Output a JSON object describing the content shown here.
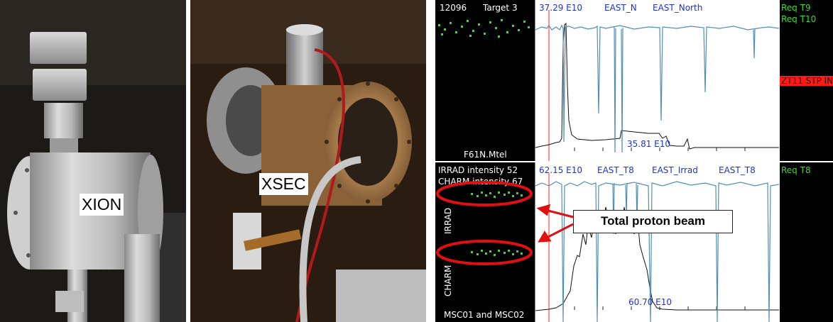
{
  "photos": {
    "left_label": "XION",
    "middle_label": "XSEC"
  },
  "top_panel": {
    "counter": "12096",
    "target": "Target 3",
    "intensity_value": "37.29 E10",
    "beam_line_1": "EAST_N",
    "beam_line_2": "EAST_North",
    "lower_value": "35.81 E10",
    "bottom_label": "F61N.Mtel",
    "right_lines": [
      "Req T9",
      "Req T10"
    ],
    "alarm": "ZT11 STP IN"
  },
  "bottom_panel": {
    "irrad_intensity": "IRRAD intensity 52",
    "charm_intensity": "CHARM intensity 67",
    "intensity_value": "62.15 E10",
    "beam_line_1": "EAST_T8",
    "beam_line_2": "EAST_Irrad",
    "beam_line_3": "EAST_T8",
    "lower_value": "60.70 E10",
    "irrad_axis_label": "IRRAD",
    "charm_axis_label": "CHARM",
    "bottom_label": "MSC01 and MSC02",
    "right_line": "Req T8"
  },
  "annotation": {
    "callout": "Total proton beam"
  },
  "colors": {
    "panel_bg": "#000000",
    "trace_blue": "#4f8fb3",
    "green_text": "#33dd33",
    "alarm_red": "#ff1a1a",
    "annotation_red": "#e01010"
  }
}
